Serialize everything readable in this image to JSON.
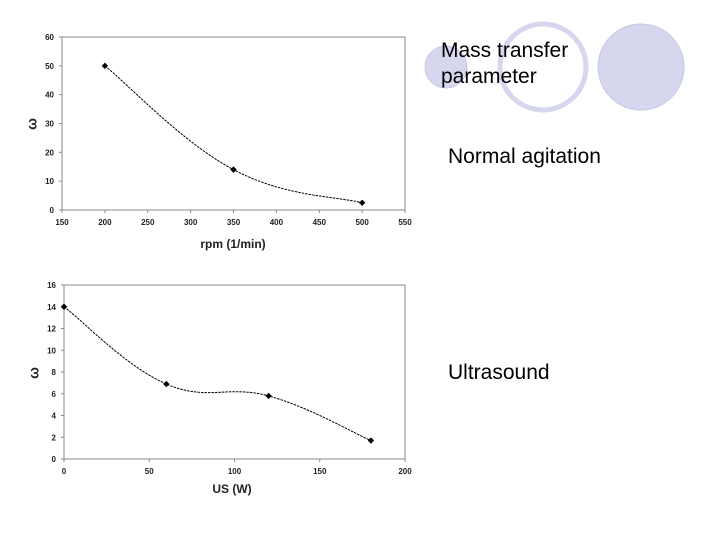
{
  "slide": {
    "heading_line1": "Mass transfer",
    "heading_line2": "parameter",
    "label_normal": "Normal agitation",
    "label_ultrasound": "Ultrasound"
  },
  "colors": {
    "circle_fill": "#d6d6ee",
    "circle_stroke": "#c8c8e4",
    "line": "#000000",
    "frame": "#888888",
    "text": "#222222"
  },
  "chart_data": [
    {
      "type": "line",
      "xlabel": "rpm (1/min)",
      "ylabel": "ω",
      "x": [
        200,
        350,
        500
      ],
      "values": [
        50,
        14,
        2.5
      ],
      "xlim": [
        150,
        550
      ],
      "ylim": [
        0,
        60
      ],
      "xticks": [
        150,
        200,
        250,
        300,
        350,
        400,
        450,
        500,
        550
      ],
      "yticks": [
        0,
        10,
        20,
        30,
        40,
        50,
        60
      ],
      "smooth": true,
      "grid": false,
      "legend": "none"
    },
    {
      "type": "line",
      "xlabel": "US (W)",
      "ylabel": "ω",
      "x": [
        0,
        60,
        120,
        180
      ],
      "values": [
        14,
        6.9,
        5.8,
        1.7
      ],
      "xlim": [
        0,
        200
      ],
      "ylim": [
        0,
        16
      ],
      "xticks": [
        0,
        50,
        100,
        150,
        200
      ],
      "yticks": [
        0,
        2,
        4,
        6,
        8,
        10,
        12,
        14,
        16
      ],
      "smooth": true,
      "grid": false,
      "legend": "none"
    }
  ]
}
